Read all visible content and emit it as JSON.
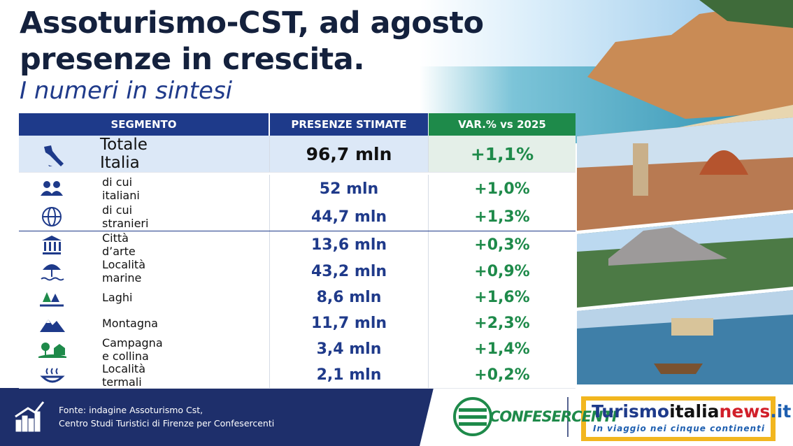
{
  "header": {
    "title_lines": [
      "Assoturismo-CST, ad agosto",
      "presenze in crescita."
    ],
    "subtitle": "I numeri in sintesi"
  },
  "table": {
    "columns": [
      "SEGMENTO",
      "PRESENZE STIMATE",
      "VAR.% vs 2025"
    ],
    "rows": [
      [
        "Totale Italia",
        "96,7 mln",
        "+1,1%"
      ],
      [
        "di cui italiani",
        "52 mln",
        "+1,0%"
      ],
      [
        "di cui stranieri",
        "44,7 mln",
        "+1,3%"
      ],
      [
        "Città d’arte",
        "13,6 mln",
        "+0,3%"
      ],
      [
        "Località marine",
        "43,2 mln",
        "+0,9%"
      ],
      [
        "Laghi",
        "8,6 mln",
        "+1,6%"
      ],
      [
        "Montagna",
        "11,7 mln",
        "+2,3%"
      ],
      [
        "Campagna e collina",
        "3,4 mln",
        "+1,4%"
      ],
      [
        "Località termali",
        "2,1 mln",
        "+0,2%"
      ]
    ]
  },
  "footer": {
    "source_lines": [
      "Fonte: indagine Assoturismo Cst,",
      "Centro Studi Turistici di Firenze per Confesercenti"
    ],
    "logo_confesercenti": "CONFESERCENTI",
    "logo_turismo": {
      "parts": [
        "Turismo",
        "italia",
        "news",
        ".it"
      ],
      "tagline": "In viaggio nei cinque continenti"
    }
  }
}
